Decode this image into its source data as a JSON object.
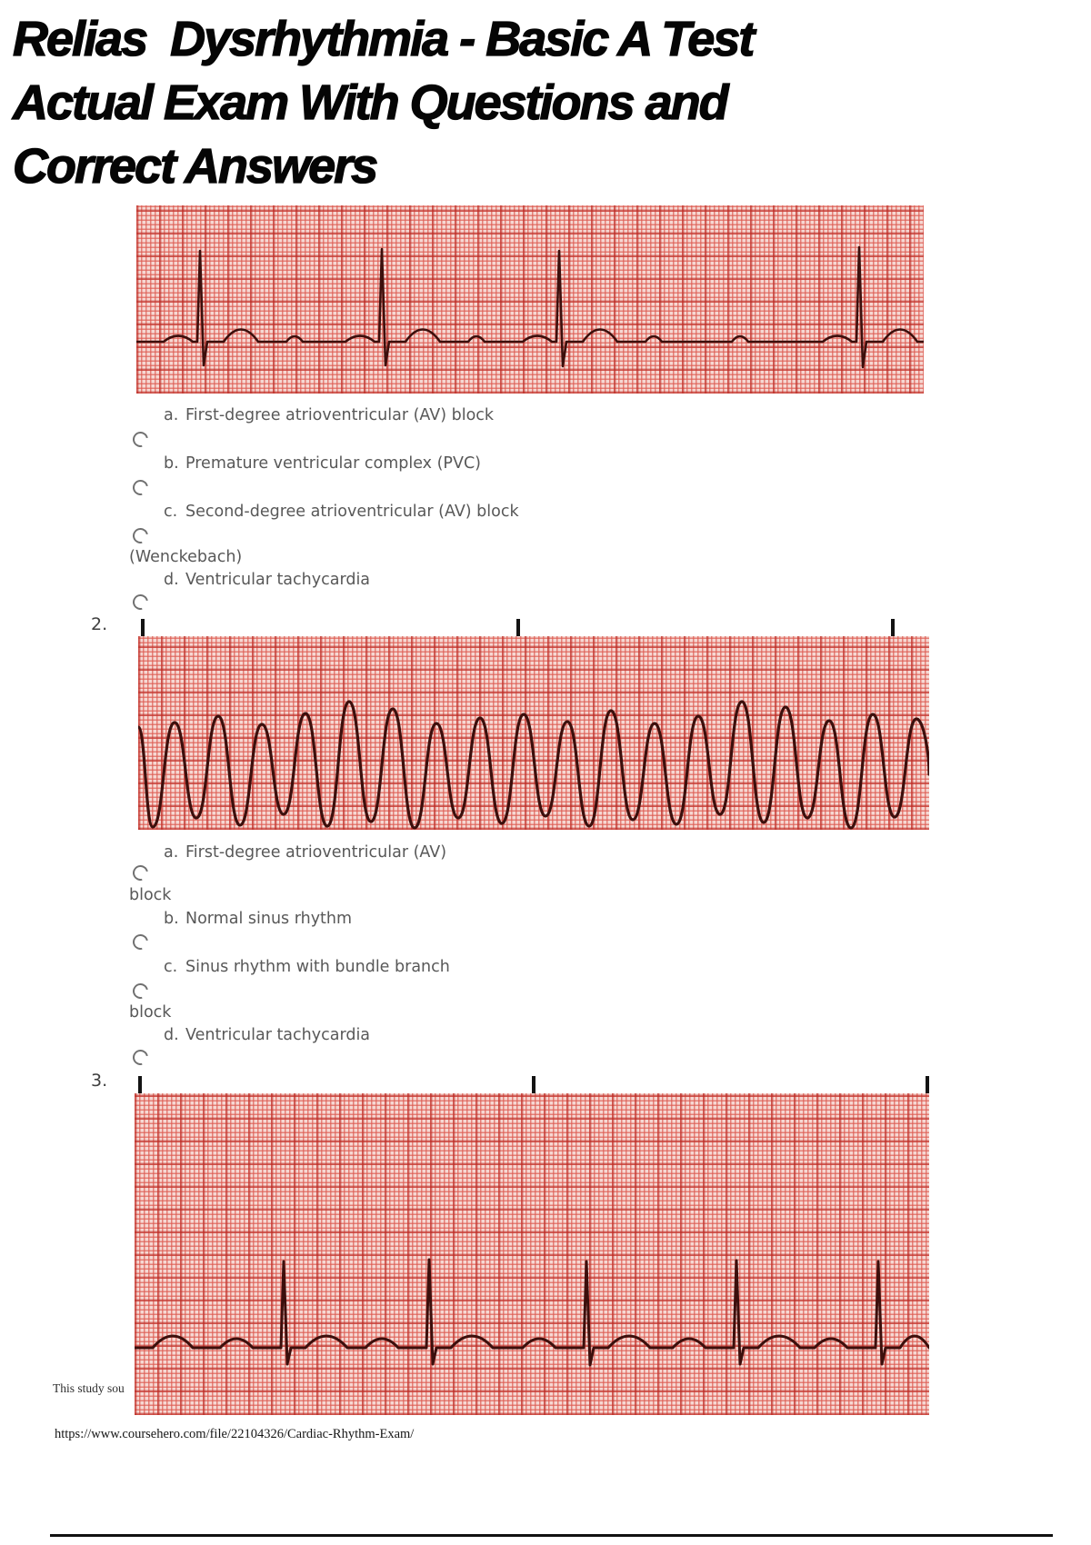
{
  "page": {
    "title_line1": "Relias  Dysrhythmia - Basic A Test",
    "title_line2": "Actual Exam With Questions and",
    "title_line3": "Correct Answers",
    "source_note_partial": "This study sou",
    "source_url": "https://www.coursehero.com/file/22104326/Cardiac-Rhythm-Exam/"
  },
  "questions": [
    {
      "number": "",
      "options": [
        {
          "letter": "a.",
          "text": "First-degree atrioventricular (AV) block",
          "continuation": ""
        },
        {
          "letter": "b.",
          "text": "Premature ventricular complex (PVC)",
          "continuation": ""
        },
        {
          "letter": "c.",
          "text": "Second-degree atrioventricular (AV) block",
          "continuation": "(Wenckebach)"
        },
        {
          "letter": "d.",
          "text": "Ventricular tachycardia",
          "continuation": ""
        }
      ]
    },
    {
      "number": "2.",
      "options": [
        {
          "letter": "a.",
          "text": "First-degree atrioventricular (AV)",
          "continuation": "block"
        },
        {
          "letter": "b.",
          "text": "Normal sinus rhythm",
          "continuation": ""
        },
        {
          "letter": "c.",
          "text": "Sinus rhythm with bundle branch",
          "continuation": "block"
        },
        {
          "letter": "d.",
          "text": "Ventricular tachycardia",
          "continuation": ""
        }
      ]
    },
    {
      "number": "3.",
      "options": []
    }
  ]
}
